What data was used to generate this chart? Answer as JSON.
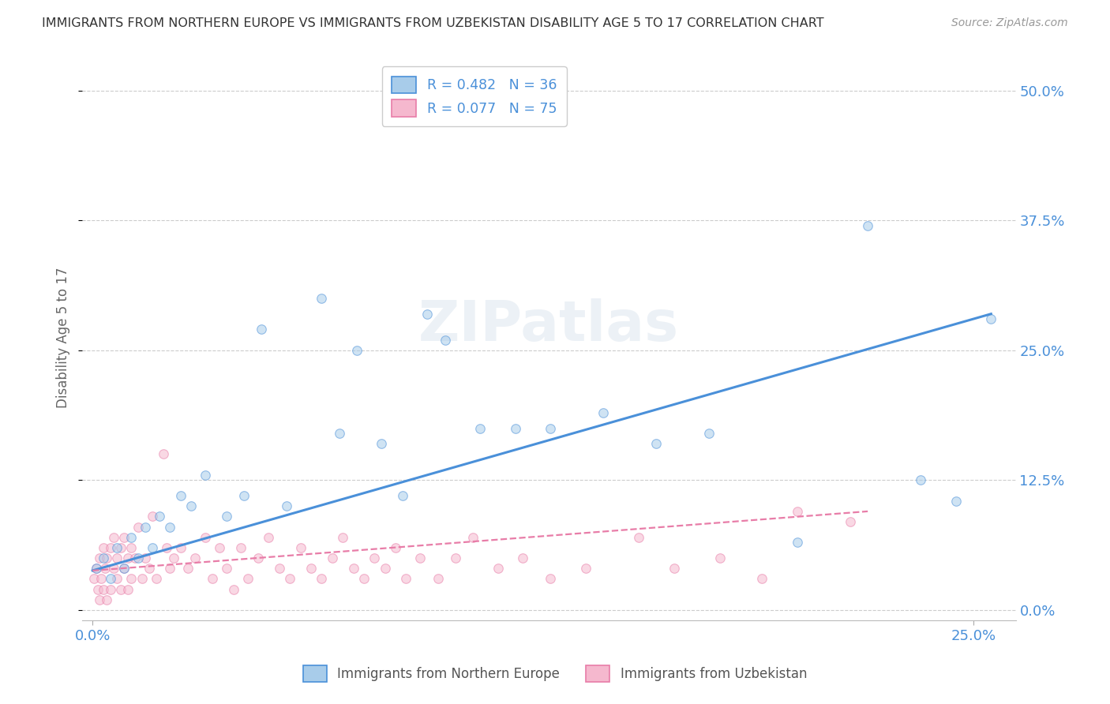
{
  "title": "IMMIGRANTS FROM NORTHERN EUROPE VS IMMIGRANTS FROM UZBEKISTAN DISABILITY AGE 5 TO 17 CORRELATION CHART",
  "source": "Source: ZipAtlas.com",
  "ylabel": "Disability Age 5 to 17",
  "y_tick_labels": [
    "0.0%",
    "12.5%",
    "25.0%",
    "37.5%",
    "50.0%"
  ],
  "y_tick_values": [
    0.0,
    0.125,
    0.25,
    0.375,
    0.5
  ],
  "x_tick_labels": [
    "0.0%",
    "25.0%"
  ],
  "x_tick_values": [
    0.0,
    0.25
  ],
  "xlim": [
    -0.003,
    0.262
  ],
  "ylim": [
    -0.01,
    0.535
  ],
  "blue_color": "#4a90d9",
  "pink_color": "#e87da8",
  "blue_scatter_color": "#a8ccea",
  "pink_scatter_color": "#f5b8ce",
  "blue_line_x": [
    0.0,
    0.255
  ],
  "blue_line_y": [
    0.038,
    0.285
  ],
  "pink_line_x": [
    0.0,
    0.22
  ],
  "pink_line_y": [
    0.038,
    0.095
  ],
  "legend_label_blue": "R = 0.482   N = 36",
  "legend_label_pink": "R = 0.077   N = 75",
  "bottom_legend_blue": "Immigrants from Northern Europe",
  "bottom_legend_pink": "Immigrants from Uzbekistan",
  "watermark": "ZIPatlas",
  "bg_color": "#ffffff",
  "grid_color": "#cccccc",
  "title_color": "#333333",
  "axis_label_color": "#4a90d9",
  "scatter_size": 70,
  "scatter_alpha": 0.55,
  "blue_scatter_x": [
    0.001,
    0.003,
    0.005,
    0.007,
    0.009,
    0.011,
    0.013,
    0.015,
    0.017,
    0.019,
    0.022,
    0.025,
    0.028,
    0.032,
    0.038,
    0.043,
    0.048,
    0.055,
    0.065,
    0.07,
    0.075,
    0.082,
    0.088,
    0.095,
    0.1,
    0.11,
    0.12,
    0.13,
    0.145,
    0.16,
    0.175,
    0.2,
    0.22,
    0.235,
    0.245,
    0.255
  ],
  "blue_scatter_y": [
    0.04,
    0.05,
    0.03,
    0.06,
    0.04,
    0.07,
    0.05,
    0.08,
    0.06,
    0.09,
    0.08,
    0.11,
    0.1,
    0.13,
    0.09,
    0.11,
    0.27,
    0.1,
    0.3,
    0.17,
    0.25,
    0.16,
    0.11,
    0.285,
    0.26,
    0.175,
    0.175,
    0.175,
    0.19,
    0.16,
    0.17,
    0.065,
    0.37,
    0.125,
    0.105,
    0.28
  ],
  "pink_scatter_x": [
    0.0005,
    0.001,
    0.0015,
    0.002,
    0.002,
    0.0025,
    0.003,
    0.003,
    0.0035,
    0.004,
    0.004,
    0.005,
    0.005,
    0.006,
    0.006,
    0.007,
    0.007,
    0.008,
    0.008,
    0.009,
    0.009,
    0.01,
    0.01,
    0.011,
    0.011,
    0.012,
    0.013,
    0.014,
    0.015,
    0.016,
    0.017,
    0.018,
    0.02,
    0.021,
    0.022,
    0.023,
    0.025,
    0.027,
    0.029,
    0.032,
    0.034,
    0.036,
    0.038,
    0.04,
    0.042,
    0.044,
    0.047,
    0.05,
    0.053,
    0.056,
    0.059,
    0.062,
    0.065,
    0.068,
    0.071,
    0.074,
    0.077,
    0.08,
    0.083,
    0.086,
    0.089,
    0.093,
    0.098,
    0.103,
    0.108,
    0.115,
    0.122,
    0.13,
    0.14,
    0.155,
    0.165,
    0.178,
    0.19,
    0.2,
    0.215
  ],
  "pink_scatter_y": [
    0.03,
    0.04,
    0.02,
    0.05,
    0.01,
    0.03,
    0.06,
    0.02,
    0.04,
    0.05,
    0.01,
    0.06,
    0.02,
    0.04,
    0.07,
    0.03,
    0.05,
    0.06,
    0.02,
    0.04,
    0.07,
    0.05,
    0.02,
    0.06,
    0.03,
    0.05,
    0.08,
    0.03,
    0.05,
    0.04,
    0.09,
    0.03,
    0.15,
    0.06,
    0.04,
    0.05,
    0.06,
    0.04,
    0.05,
    0.07,
    0.03,
    0.06,
    0.04,
    0.02,
    0.06,
    0.03,
    0.05,
    0.07,
    0.04,
    0.03,
    0.06,
    0.04,
    0.03,
    0.05,
    0.07,
    0.04,
    0.03,
    0.05,
    0.04,
    0.06,
    0.03,
    0.05,
    0.03,
    0.05,
    0.07,
    0.04,
    0.05,
    0.03,
    0.04,
    0.07,
    0.04,
    0.05,
    0.03,
    0.095,
    0.085
  ]
}
